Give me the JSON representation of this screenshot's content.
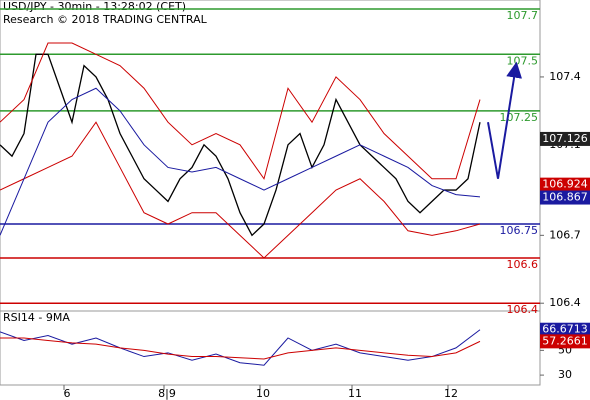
{
  "chart_data": [
    {
      "type": "line",
      "title": "USD/JPY - 30min - 13:28:02 (CET)",
      "subtitle": "Research © 2018 TRADING CENTRAL",
      "xlim": [
        0,
        135
      ],
      "ylim": [
        106.37,
        107.74
      ],
      "xticks": [
        {
          "value": 16,
          "label": "6"
        },
        {
          "value": 41,
          "label": "8|9"
        },
        {
          "value": 65,
          "label": "10"
        },
        {
          "value": 88,
          "label": "11"
        },
        {
          "value": 112,
          "label": "12"
        }
      ],
      "yticks": [
        106.4,
        106.7,
        107.1,
        107.4
      ],
      "series": [
        {
          "name": "Price",
          "color": "#000000",
          "width": 1.3,
          "x": [
            0,
            3,
            6,
            9,
            12,
            15,
            18,
            21,
            24,
            27,
            30,
            33,
            36,
            39,
            42,
            45,
            48,
            51,
            54,
            57,
            60,
            63,
            66,
            69,
            72,
            75,
            78,
            81,
            84,
            87,
            90,
            93,
            96,
            99,
            102,
            105,
            108,
            111,
            114,
            117,
            120
          ],
          "values": [
            107.1,
            107.05,
            107.15,
            107.5,
            107.5,
            107.35,
            107.2,
            107.45,
            107.4,
            107.3,
            107.15,
            107.05,
            106.95,
            106.9,
            106.85,
            106.95,
            107.0,
            107.1,
            107.05,
            106.95,
            106.8,
            106.7,
            106.75,
            106.9,
            107.1,
            107.15,
            107.0,
            107.1,
            107.3,
            107.2,
            107.1,
            107.05,
            107.0,
            106.95,
            106.85,
            106.8,
            106.85,
            106.9,
            106.9,
            106.95,
            107.2
          ]
        },
        {
          "name": "Upper band",
          "color": "#cc0000",
          "width": 1,
          "x": [
            0,
            6,
            12,
            18,
            24,
            30,
            36,
            42,
            48,
            54,
            60,
            66,
            72,
            78,
            84,
            90,
            96,
            102,
            108,
            114,
            120
          ],
          "values": [
            107.2,
            107.3,
            107.55,
            107.55,
            107.5,
            107.45,
            107.35,
            107.2,
            107.1,
            107.15,
            107.1,
            106.95,
            107.35,
            107.2,
            107.4,
            107.3,
            107.15,
            107.05,
            106.95,
            106.95,
            107.3
          ]
        },
        {
          "name": "Lower band",
          "color": "#cc0000",
          "width": 1,
          "x": [
            0,
            6,
            12,
            18,
            24,
            30,
            36,
            42,
            48,
            54,
            60,
            66,
            72,
            78,
            84,
            90,
            96,
            102,
            108,
            114,
            120
          ],
          "values": [
            106.9,
            106.95,
            107.0,
            107.05,
            107.2,
            107.0,
            106.8,
            106.75,
            106.8,
            106.8,
            106.7,
            106.6,
            106.7,
            106.8,
            106.9,
            106.95,
            106.85,
            106.72,
            106.7,
            106.72,
            106.75
          ]
        },
        {
          "name": "Moving average",
          "color": "#1a1aa0",
          "width": 1,
          "x": [
            0,
            6,
            12,
            18,
            24,
            30,
            36,
            42,
            48,
            54,
            60,
            66,
            72,
            78,
            84,
            90,
            96,
            102,
            108,
            114,
            120
          ],
          "values": [
            106.7,
            106.95,
            107.2,
            107.3,
            107.35,
            107.25,
            107.1,
            107.0,
            106.98,
            107.0,
            106.95,
            106.9,
            106.95,
            107.0,
            107.05,
            107.1,
            107.05,
            107.0,
            106.92,
            106.88,
            106.87
          ]
        }
      ],
      "forecast": {
        "color": "#1a1aa0",
        "x": [
          122,
          124.5,
          129
        ],
        "values": [
          107.2,
          106.95,
          107.45
        ]
      },
      "levels": [
        {
          "value": 107.7,
          "color": "#2e9a2e"
        },
        {
          "value": 107.5,
          "color": "#2e9a2e"
        },
        {
          "value": 107.25,
          "color": "#2e9a2e"
        },
        {
          "value": 106.75,
          "color": "#1a1aa0"
        },
        {
          "value": 106.6,
          "color": "#cc0000"
        },
        {
          "value": 106.4,
          "color": "#cc0000"
        }
      ],
      "price_tags": [
        {
          "value": 107.126,
          "color": "#222222"
        },
        {
          "value": 106.924,
          "color": "#cc0000"
        },
        {
          "value": 106.867,
          "color": "#1a1aa0"
        }
      ]
    },
    {
      "type": "line",
      "title": "RSI14 - 9MA",
      "xlim": [
        0,
        135
      ],
      "ylim": [
        22,
        81
      ],
      "yticks": [
        30,
        50
      ],
      "series": [
        {
          "name": "RSI14",
          "color": "#1a1aa0",
          "width": 1,
          "x": [
            0,
            6,
            12,
            18,
            24,
            30,
            36,
            42,
            48,
            54,
            60,
            66,
            72,
            78,
            84,
            90,
            96,
            102,
            108,
            114,
            120
          ],
          "values": [
            65,
            58,
            62,
            55,
            60,
            52,
            45,
            48,
            42,
            47,
            40,
            38,
            60,
            50,
            55,
            48,
            45,
            42,
            45,
            52,
            66.6713
          ]
        },
        {
          "name": "9MA",
          "color": "#cc0000",
          "width": 1,
          "x": [
            0,
            6,
            12,
            18,
            24,
            30,
            36,
            42,
            48,
            54,
            60,
            66,
            72,
            78,
            84,
            90,
            96,
            102,
            108,
            114,
            120
          ],
          "values": [
            60,
            60,
            58,
            56,
            55,
            52,
            50,
            47,
            45,
            45,
            44,
            43,
            48,
            50,
            52,
            50,
            48,
            46,
            45,
            48,
            57.2661
          ]
        }
      ],
      "price_tags": [
        {
          "value": 66.6713,
          "color": "#1a1aa0"
        },
        {
          "value": 57.2661,
          "color": "#cc0000"
        }
      ]
    }
  ]
}
